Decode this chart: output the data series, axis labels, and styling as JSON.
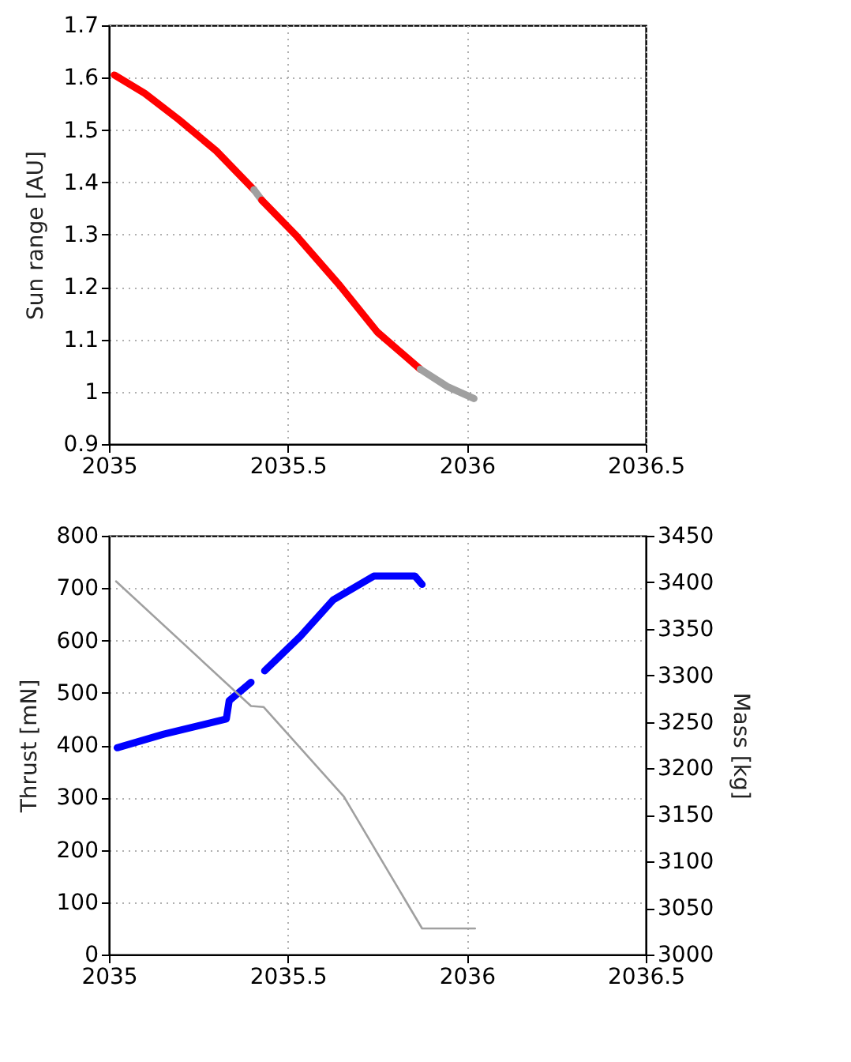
{
  "chart_data": [
    {
      "type": "line",
      "ylabel": "Sun range [AU]",
      "xlim": [
        2035,
        2036.5
      ],
      "xticks": [
        2035,
        2035.5,
        2036,
        2036.5
      ],
      "ylim": [
        0.9,
        1.7
      ],
      "yticks": [
        0.9,
        1.0,
        1.1,
        1.2,
        1.3,
        1.4,
        1.5,
        1.6,
        1.7
      ],
      "grid": true,
      "legend": false,
      "marker": "none",
      "line_style": "solid",
      "series": [
        {
          "color": "#ff0000",
          "x": [
            2035.015,
            2035.1,
            2035.195,
            2035.3,
            2035.405
          ],
          "values": [
            1.605,
            1.57,
            1.52,
            1.46,
            1.386
          ]
        },
        {
          "color": "#a0a0a0",
          "x": [
            2035.405,
            2035.427
          ],
          "values": [
            1.386,
            1.366
          ]
        },
        {
          "color": "#ff0000",
          "x": [
            2035.427,
            2035.525,
            2035.645,
            2035.75,
            2035.87
          ],
          "values": [
            1.366,
            1.297,
            1.203,
            1.114,
            1.043
          ]
        },
        {
          "color": "#a0a0a0",
          "x": [
            2035.87,
            2035.945,
            2036.02
          ],
          "values": [
            1.043,
            1.01,
            0.987
          ]
        }
      ]
    },
    {
      "type": "line",
      "ylabel": "Thrust [mN]",
      "y2label": "Mass [kg]",
      "xlim": [
        2035,
        2036.5
      ],
      "xticks": [
        2035,
        2035.5,
        2036,
        2036.5
      ],
      "ylim": [
        0,
        800
      ],
      "yticks": [
        0,
        100,
        200,
        300,
        400,
        500,
        600,
        700,
        800
      ],
      "y2lim": [
        3000,
        3450
      ],
      "y2ticks": [
        3000,
        3050,
        3100,
        3150,
        3200,
        3250,
        3300,
        3350,
        3400,
        3450
      ],
      "grid": true,
      "legend": false,
      "marker": "none",
      "line_style": "solid",
      "series": [
        {
          "color": "#0000ff",
          "x": [
            2035.023,
            2035.153,
            2035.328,
            2035.336,
            2035.397,
            2035.415,
            2035.435,
            2035.535,
            2035.626,
            2035.74,
            2035.855,
            2035.875
          ],
          "values": [
            395,
            421,
            450,
            485,
            520,
            null,
            542,
            608,
            677,
            723,
            723,
            707
          ]
        },
        {
          "color": "#a0a0a0",
          "axis": "y2",
          "x": [
            2035.02,
            2035.397,
            2035.432,
            2035.656,
            2035.875,
            2036.023
          ],
          "values": [
            3401,
            3267,
            3266,
            3170,
            3028,
            3028
          ]
        }
      ]
    }
  ]
}
